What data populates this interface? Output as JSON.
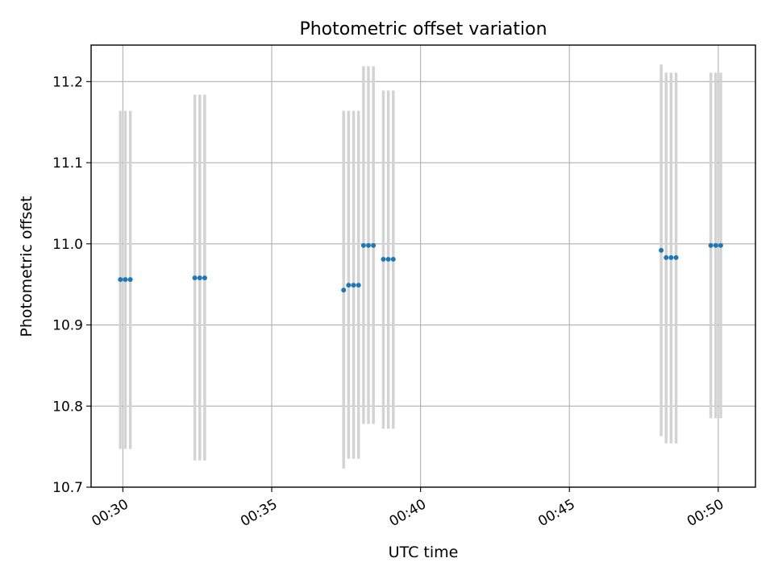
{
  "chart_data": {
    "type": "scatter",
    "title": "Photometric offset variation",
    "xlabel": "UTC time",
    "ylabel": "Photometric offset",
    "x_ticks": [
      "00:30",
      "00:35",
      "00:40",
      "00:45",
      "00:50"
    ],
    "y_ticks": [
      "10.7",
      "10.8",
      "10.9",
      "11.0",
      "11.1",
      "11.2"
    ],
    "xlim": [
      "00:28:56",
      "00:51:15"
    ],
    "ylim": [
      10.7,
      11.245
    ],
    "grid": true,
    "x": [
      "00:29:55",
      "00:30:05",
      "00:30:15",
      "00:32:25",
      "00:32:35",
      "00:32:45",
      "00:37:25",
      "00:37:35",
      "00:37:45",
      "00:37:55",
      "00:38:05",
      "00:38:15",
      "00:38:25",
      "00:38:45",
      "00:38:55",
      "00:39:05",
      "00:48:05",
      "00:48:15",
      "00:48:25",
      "00:48:35",
      "00:49:45",
      "00:49:55",
      "00:50:05"
    ],
    "y": [
      10.956,
      10.956,
      10.956,
      10.958,
      10.958,
      10.958,
      10.943,
      10.949,
      10.949,
      10.949,
      10.998,
      10.998,
      10.998,
      10.981,
      10.981,
      10.981,
      10.992,
      10.983,
      10.983,
      10.983,
      10.998,
      10.998,
      10.998
    ],
    "y_lower": [
      10.747,
      10.747,
      10.747,
      10.733,
      10.733,
      10.733,
      10.723,
      10.735,
      10.735,
      10.735,
      10.778,
      10.778,
      10.778,
      10.772,
      10.772,
      10.772,
      10.763,
      10.754,
      10.754,
      10.754,
      10.785,
      10.785,
      10.785
    ],
    "y_upper": [
      11.164,
      11.164,
      11.164,
      11.184,
      11.184,
      11.184,
      11.164,
      11.164,
      11.164,
      11.164,
      11.219,
      11.219,
      11.219,
      11.189,
      11.189,
      11.189,
      11.221,
      11.211,
      11.211,
      11.211,
      11.211,
      11.211,
      11.211
    ],
    "colors": {
      "points": "#1f77b4",
      "errorbars": "#d3d3d3",
      "grid": "#b0b0b0",
      "axes": "#000000"
    }
  }
}
